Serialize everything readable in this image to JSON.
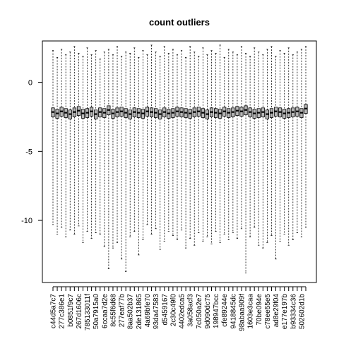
{
  "chart_data": {
    "type": "boxplot",
    "title": "count outliers",
    "xlabel": "",
    "ylabel": "",
    "ylim": [
      -14.5,
      3.0
    ],
    "yticks": [
      0,
      -5,
      -10
    ],
    "grid": false,
    "legend": "none",
    "box_fill": "#b8b8b8",
    "outline_color": "#000000",
    "categories": [
      "c44d5a7c7",
      "",
      "277c386e1",
      "",
      "b0851f9c7",
      "",
      "267d1606c",
      "",
      "785133011f",
      "",
      "50a7915a0",
      "",
      "6ccaa7d2e",
      "",
      "8c55f6d68",
      "",
      "277eaf77b",
      "",
      "8aa502b37",
      "",
      "2de131865",
      "",
      "4a69bfe70",
      "",
      "93da47583",
      "",
      "d5459167",
      "",
      "2c30c49f0",
      "",
      "4402edca5",
      "",
      "3a058acf3",
      "",
      "7c050a2e7",
      "",
      "9d090dc75",
      "",
      "198947bcc",
      "",
      "cfe89244e",
      "",
      "9418845dc",
      "",
      "98abaa909f",
      "",
      "1603e3caa",
      "",
      "70be094e",
      "",
      "c78ee55e5",
      "",
      "ad8e29f04",
      "",
      "e177e197b",
      "",
      "b93334c36",
      "",
      "502602d1b",
      ""
    ],
    "series": [
      {
        "whisker_high": [
          2.3,
          1.8,
          2.4,
          2.0,
          2.2,
          2.6,
          2.1,
          1.9,
          2.5,
          2.0,
          2.3,
          1.7,
          2.2,
          2.4,
          2.0,
          2.6,
          1.9,
          2.2,
          2.1,
          2.5,
          1.8,
          2.3,
          2.0,
          2.7,
          2.2,
          1.9,
          2.6,
          2.1,
          2.4,
          2.0,
          2.3,
          1.8,
          2.6,
          2.2,
          1.9,
          2.5,
          2.0,
          2.3,
          2.1,
          2.7,
          1.8,
          2.4,
          2.2,
          2.0,
          2.6,
          2.1,
          1.9,
          2.5,
          2.2,
          2.0,
          2.4,
          2.6,
          1.9,
          2.3,
          2.1,
          2.5,
          2.0,
          2.2,
          2.4,
          2.6
        ],
        "q3": [
          -1.85,
          -1.95,
          -1.8,
          -1.9,
          -2.0,
          -1.85,
          -1.75,
          -1.95,
          -1.9,
          -1.8,
          -2.0,
          -1.85,
          -1.9,
          -1.7,
          -1.95,
          -1.85,
          -1.8,
          -1.9,
          -2.0,
          -1.85,
          -1.9,
          -1.95,
          -1.8,
          -1.85,
          -1.9,
          -2.0,
          -1.85,
          -1.95,
          -1.9,
          -1.8,
          -1.85,
          -1.9,
          -1.95,
          -1.85,
          -1.8,
          -1.9,
          -2.0,
          -1.85,
          -1.9,
          -1.95,
          -1.8,
          -1.9,
          -1.85,
          -1.75,
          -1.8,
          -1.7,
          -1.85,
          -1.95,
          -1.9,
          -1.85,
          -2.0,
          -1.9,
          -1.8,
          -1.85,
          -1.95,
          -1.9,
          -1.85,
          -1.8,
          -1.9,
          -1.6
        ],
        "median": [
          -2.15,
          -2.25,
          -2.1,
          -2.2,
          -2.3,
          -2.15,
          -2.05,
          -2.25,
          -2.2,
          -2.1,
          -2.3,
          -2.15,
          -2.2,
          -2.0,
          -2.25,
          -2.15,
          -2.1,
          -2.2,
          -2.3,
          -2.15,
          -2.2,
          -2.25,
          -2.1,
          -2.15,
          -2.2,
          -2.3,
          -2.15,
          -2.25,
          -2.2,
          -2.1,
          -2.15,
          -2.2,
          -2.25,
          -2.15,
          -2.1,
          -2.2,
          -2.3,
          -2.15,
          -2.2,
          -2.25,
          -2.1,
          -2.2,
          -2.15,
          -2.05,
          -2.1,
          -2.0,
          -2.15,
          -2.25,
          -2.2,
          -2.15,
          -2.3,
          -2.2,
          -2.1,
          -2.15,
          -2.25,
          -2.2,
          -2.15,
          -2.1,
          -2.2,
          -1.9
        ],
        "q1": [
          -2.5,
          -2.6,
          -2.45,
          -2.55,
          -2.65,
          -2.5,
          -2.4,
          -2.6,
          -2.55,
          -2.45,
          -2.65,
          -2.5,
          -2.55,
          -2.35,
          -2.6,
          -2.5,
          -2.45,
          -2.55,
          -2.65,
          -2.5,
          -2.55,
          -2.6,
          -2.45,
          -2.5,
          -2.55,
          -2.65,
          -2.5,
          -2.6,
          -2.55,
          -2.45,
          -2.5,
          -2.55,
          -2.6,
          -2.5,
          -2.45,
          -2.55,
          -2.65,
          -2.5,
          -2.55,
          -2.6,
          -2.45,
          -2.55,
          -2.5,
          -2.4,
          -2.45,
          -2.35,
          -2.5,
          -2.6,
          -2.55,
          -2.5,
          -2.65,
          -2.55,
          -2.45,
          -2.5,
          -2.6,
          -2.55,
          -2.5,
          -2.45,
          -2.55,
          -2.25
        ],
        "whisker_low": [
          -10.3,
          -11.0,
          -10.5,
          -11.2,
          -10.7,
          -11.0,
          -10.4,
          -11.6,
          -10.8,
          -11.3,
          -10.9,
          -11.0,
          -11.9,
          -13.5,
          -12.0,
          -11.6,
          -12.8,
          -13.7,
          -11.2,
          -10.8,
          -12.5,
          -11.4,
          -10.3,
          -11.0,
          -10.6,
          -12.1,
          -11.5,
          -10.8,
          -11.1,
          -11.4,
          -10.7,
          -12.0,
          -11.3,
          -11.8,
          -10.9,
          -11.5,
          -11.2,
          -11.7,
          -10.8,
          -11.6,
          -11.0,
          -11.4,
          -10.9,
          -11.3,
          -10.6,
          -13.8,
          -11.2,
          -10.5,
          -11.8,
          -12.0,
          -11.6,
          -11.1,
          -12.8,
          -11.5,
          -11.0,
          -11.8,
          -11.4,
          -10.9,
          -11.2,
          -10.5
        ]
      }
    ]
  }
}
